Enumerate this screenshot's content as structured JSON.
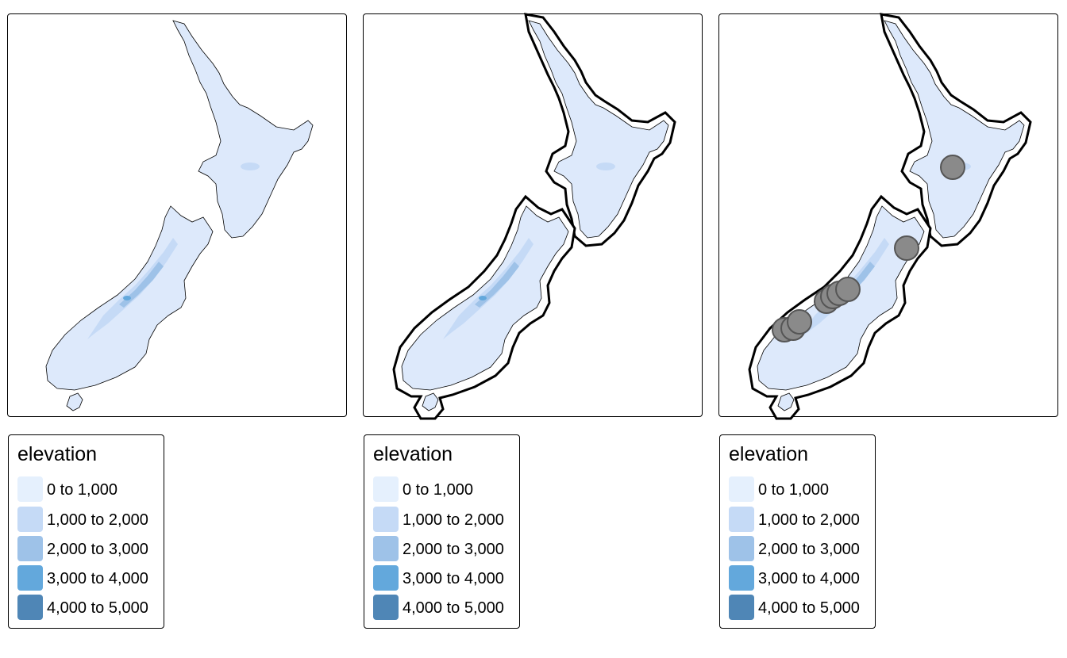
{
  "maps": [
    {
      "name": "nz-elevation-map",
      "buffer": false,
      "points": false
    },
    {
      "name": "nz-elevation-map-with-buffer",
      "buffer": true,
      "points": false
    },
    {
      "name": "nz-elevation-map-with-buffer-and-peaks",
      "buffer": true,
      "points": true
    }
  ],
  "legend": {
    "title": "elevation",
    "items": [
      {
        "label": "0 to 1,000",
        "color": "#e5f0fd"
      },
      {
        "label": "1,000 to 2,000",
        "color": "#c5daf6"
      },
      {
        "label": "2,000 to 3,000",
        "color": "#9ec2e8"
      },
      {
        "label": "3,000 to 4,000",
        "color": "#63a8dc"
      },
      {
        "label": "4,000 to 5,000",
        "color": "#4f86b6"
      }
    ]
  },
  "colors": {
    "land": "#dde9fb",
    "peak_fill": "#8a8a8a",
    "peak_stroke": "#555555",
    "outline": "#000000"
  }
}
